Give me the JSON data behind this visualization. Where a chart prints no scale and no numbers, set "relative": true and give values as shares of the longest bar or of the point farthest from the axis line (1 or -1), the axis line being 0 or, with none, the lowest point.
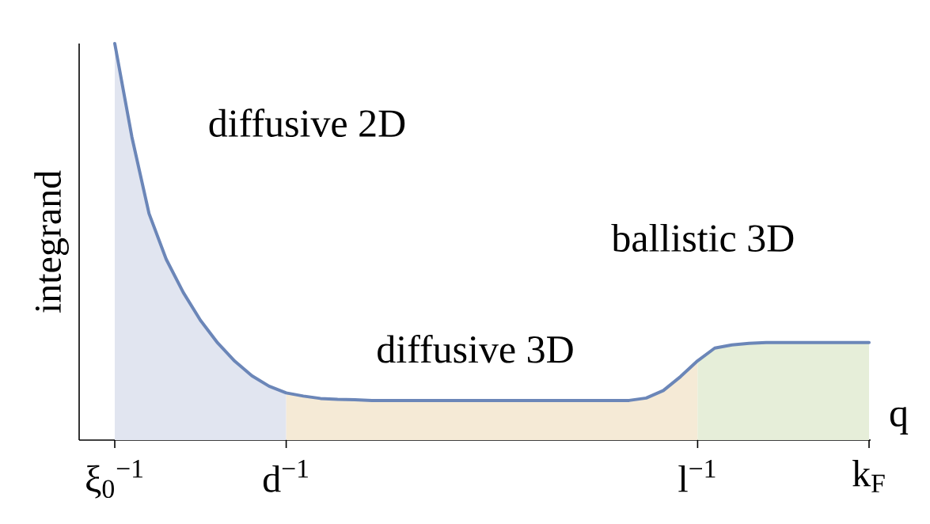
{
  "chart_data": {
    "type": "line",
    "relative": true,
    "xlabel": "q",
    "ylabel": "integrand",
    "categories": [
      "ξ$_{0}$$^{−1}$",
      null,
      null,
      null,
      null,
      null,
      null,
      null,
      null,
      null,
      "d$^{−1}$",
      null,
      null,
      null,
      null,
      null,
      null,
      null,
      null,
      null,
      null,
      null,
      null,
      null,
      null,
      null,
      null,
      null,
      null,
      null,
      null,
      null,
      null,
      null,
      "l$^{−1}$",
      null,
      null,
      null,
      null,
      null,
      null,
      null,
      null,
      null,
      "k$_{F}$"
    ],
    "annotations": [
      "diffusive 2D",
      "ballistic 3D",
      "diffusive 3D"
    ],
    "series": [
      {
        "type": "area",
        "color": "#e1e5f0",
        "values": [
          1.0,
          0.764,
          0.571,
          0.456,
          0.372,
          0.302,
          0.245,
          0.199,
          0.162,
          0.136,
          0.119,
          null,
          null,
          null,
          null,
          null,
          null,
          null,
          null,
          null,
          null,
          null,
          null,
          null,
          null,
          null,
          null,
          null,
          null,
          null,
          null,
          null,
          null,
          null,
          null,
          null,
          null,
          null,
          null,
          null,
          null,
          null,
          null,
          null,
          null
        ]
      },
      {
        "type": "area",
        "color": "#f5ead6",
        "values": [
          null,
          null,
          null,
          null,
          null,
          null,
          null,
          null,
          null,
          null,
          0.119,
          0.111,
          0.105,
          0.103,
          0.102,
          0.1,
          0.1,
          0.1,
          0.1,
          0.1,
          0.1,
          0.1,
          0.1,
          0.1,
          0.1,
          0.1,
          0.1,
          0.1,
          0.1,
          0.1,
          0.1,
          0.106,
          0.125,
          0.16,
          0.2,
          null,
          null,
          null,
          null,
          null,
          null,
          null,
          null,
          null,
          null
        ]
      },
      {
        "type": "area",
        "color": "#e6eed9",
        "values": [
          null,
          null,
          null,
          null,
          null,
          null,
          null,
          null,
          null,
          null,
          null,
          null,
          null,
          null,
          null,
          null,
          null,
          null,
          null,
          null,
          null,
          null,
          null,
          null,
          null,
          null,
          null,
          null,
          null,
          null,
          null,
          null,
          null,
          null,
          0.2,
          0.232,
          0.24,
          0.244,
          0.246,
          0.246,
          0.246,
          0.246,
          0.246,
          0.246,
          0.246
        ]
      },
      {
        "color": "#6b86b8",
        "values": [
          1.0,
          0.764,
          0.571,
          0.456,
          0.372,
          0.302,
          0.245,
          0.199,
          0.162,
          0.136,
          0.119,
          0.111,
          0.105,
          0.103,
          0.102,
          0.1,
          0.1,
          0.1,
          0.1,
          0.1,
          0.1,
          0.1,
          0.1,
          0.1,
          0.1,
          0.1,
          0.1,
          0.1,
          0.1,
          0.1,
          0.1,
          0.106,
          0.125,
          0.16,
          0.2,
          0.232,
          0.24,
          0.244,
          0.246,
          0.246,
          0.246,
          0.246,
          0.246,
          0.246,
          0.246
        ]
      }
    ]
  }
}
